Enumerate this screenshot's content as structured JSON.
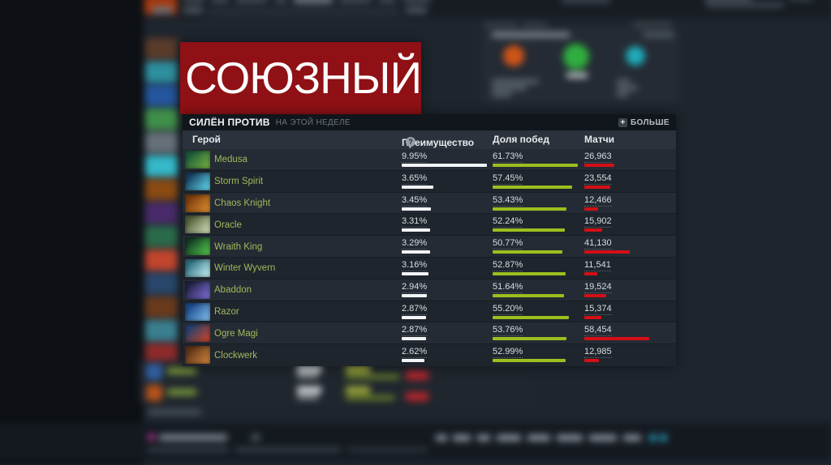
{
  "banner": {
    "label": "СОЮЗНЫЙ",
    "bg_color": "#8f1015"
  },
  "panel": {
    "title": "СИЛЁН ПРОТИВ",
    "subtitle": "НА ЭТОЙ НЕДЕЛЕ",
    "more_label": "БОЛЬШЕ",
    "plus_icon": "+",
    "help_icon": "?",
    "columns": {
      "hero": "Герой",
      "advantage": "Преимущество",
      "win_rate": "Доля побед",
      "matches": "Матчи"
    },
    "colors": {
      "advantage_bar": "#f2f4f5",
      "win_rate_bar": "#9dbf1e",
      "matches_bar": "#d40f16",
      "hero_name": "#a2b85c"
    },
    "rows": [
      {
        "hero": "Medusa",
        "advantage": "9.95%",
        "adv": 9.95,
        "win_rate": "61.73%",
        "wr": 61.73,
        "matches": "26,963",
        "m": 26963,
        "icon": [
          "#1d5a3a",
          "#6fae3f"
        ]
      },
      {
        "hero": "Storm Spirit",
        "advantage": "3.65%",
        "adv": 3.65,
        "win_rate": "57.45%",
        "wr": 57.45,
        "matches": "23,554",
        "m": 23554,
        "icon": [
          "#173f5f",
          "#5fd0e8"
        ]
      },
      {
        "hero": "Chaos Knight",
        "advantage": "3.45%",
        "adv": 3.45,
        "win_rate": "53.43%",
        "wr": 53.43,
        "matches": "12,466",
        "m": 12466,
        "icon": [
          "#7a3c0e",
          "#d98a2b"
        ]
      },
      {
        "hero": "Oracle",
        "advantage": "3.31%",
        "adv": 3.31,
        "win_rate": "52.24%",
        "wr": 52.24,
        "matches": "15,902",
        "m": 15902,
        "icon": [
          "#51603a",
          "#cfd8b0"
        ]
      },
      {
        "hero": "Wraith King",
        "advantage": "3.29%",
        "adv": 3.29,
        "win_rate": "50.77%",
        "wr": 50.77,
        "matches": "41,130",
        "m": 41130,
        "icon": [
          "#143d24",
          "#4fc04a"
        ]
      },
      {
        "hero": "Winter Wyvern",
        "advantage": "3.16%",
        "adv": 3.16,
        "win_rate": "52.87%",
        "wr": 52.87,
        "matches": "11,541",
        "m": 11541,
        "icon": [
          "#2e6f7f",
          "#bfeef2"
        ]
      },
      {
        "hero": "Abaddon",
        "advantage": "2.94%",
        "adv": 2.94,
        "win_rate": "51.64%",
        "wr": 51.64,
        "matches": "19,524",
        "m": 19524,
        "icon": [
          "#232345",
          "#7a6ad0"
        ]
      },
      {
        "hero": "Razor",
        "advantage": "2.87%",
        "adv": 2.87,
        "win_rate": "55.20%",
        "wr": 55.2,
        "matches": "15,374",
        "m": 15374,
        "icon": [
          "#1d4a8c",
          "#7ab8e8"
        ]
      },
      {
        "hero": "Ogre Magi",
        "advantage": "2.87%",
        "adv": 2.87,
        "win_rate": "53.76%",
        "wr": 53.76,
        "matches": "58,454",
        "m": 58454,
        "icon": [
          "#23406b",
          "#c2452e"
        ]
      },
      {
        "hero": "Clockwerk",
        "advantage": "2.62%",
        "adv": 2.62,
        "win_rate": "52.99%",
        "wr": 52.99,
        "matches": "12,985",
        "m": 12985,
        "icon": [
          "#5f3318",
          "#c87f3a"
        ]
      }
    ]
  }
}
